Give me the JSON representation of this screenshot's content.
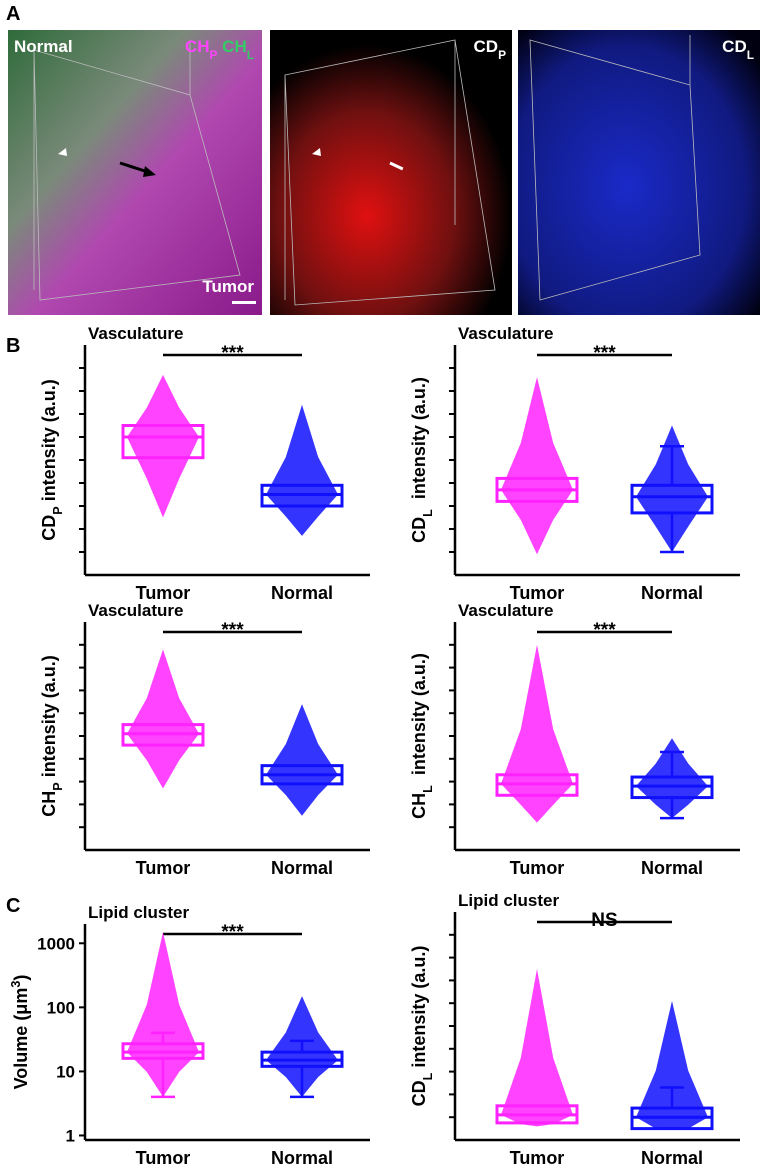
{
  "panel_letters": [
    "A",
    "B",
    "C"
  ],
  "images": [
    {
      "top_left": "Normal",
      "bottom_right": "Tumor",
      "top_right": [
        {
          "text": "CH",
          "color": "#ff44ff"
        },
        {
          "sub": "P",
          "color": "#ff44ff"
        },
        {
          "text": " CH",
          "color": "#33cc66"
        },
        {
          "sub": "L",
          "color": "#33cc66"
        }
      ]
    },
    {
      "top_right": [
        {
          "text": "CD"
        },
        {
          "sub": "P"
        }
      ]
    },
    {
      "top_right": [
        {
          "text": "CD"
        },
        {
          "sub": "L"
        }
      ]
    }
  ],
  "chart_data": [
    {
      "type": "box",
      "title": "Vasculature",
      "y_label": [
        {
          "text": "CD"
        },
        {
          "sub": "P"
        },
        {
          "text": " intensity (a.u.)"
        }
      ],
      "categories": [
        "Tumor",
        "Normal"
      ],
      "colors": [
        "#ff22ff",
        "#1010ff"
      ],
      "significance": "***",
      "ylim": [
        0,
        10
      ],
      "yticks": [
        1,
        2,
        3,
        4,
        5,
        6,
        7,
        8,
        9
      ],
      "show_ytick_labels": false,
      "log_y": false,
      "boxes": [
        {
          "q1": 5.1,
          "median": 6.0,
          "q3": 6.5,
          "extent": [
            2.5,
            8.7
          ]
        },
        {
          "q1": 3.0,
          "median": 3.5,
          "q3": 3.9,
          "extent": [
            1.7,
            7.4
          ]
        }
      ]
    },
    {
      "type": "box",
      "title": "Vasculature",
      "y_label": [
        {
          "text": "CD"
        },
        {
          "sub": "L"
        },
        {
          "text": "  intensity (a.u.)"
        }
      ],
      "categories": [
        "Tumor",
        "Normal"
      ],
      "colors": [
        "#ff22ff",
        "#1010ff"
      ],
      "significance": "***",
      "ylim": [
        0,
        10
      ],
      "yticks": [
        1,
        2,
        3,
        4,
        5,
        6,
        7,
        8,
        9
      ],
      "show_ytick_labels": false,
      "log_y": false,
      "boxes": [
        {
          "q1": 3.2,
          "median": 3.7,
          "q3": 4.2,
          "extent": [
            0.9,
            8.6
          ]
        },
        {
          "q1": 2.7,
          "median": 3.4,
          "q3": 3.9,
          "whisker": [
            1.0,
            5.6
          ],
          "extent": [
            1.0,
            6.5
          ]
        }
      ]
    },
    {
      "type": "box",
      "title": "Vasculature",
      "y_label": [
        {
          "text": "CH"
        },
        {
          "sub": "P"
        },
        {
          "text": " intensity (a.u.)"
        }
      ],
      "categories": [
        "Tumor",
        "Normal"
      ],
      "colors": [
        "#ff22ff",
        "#1010ff"
      ],
      "significance": "***",
      "ylim": [
        0,
        10
      ],
      "yticks": [
        1,
        2,
        3,
        4,
        5,
        6,
        7,
        8,
        9
      ],
      "show_ytick_labels": false,
      "log_y": false,
      "boxes": [
        {
          "q1": 4.6,
          "median": 5.1,
          "q3": 5.5,
          "extent": [
            2.7,
            8.8
          ]
        },
        {
          "q1": 2.9,
          "median": 3.3,
          "q3": 3.7,
          "extent": [
            1.5,
            6.4
          ]
        }
      ]
    },
    {
      "type": "box",
      "title": "Vasculature",
      "y_label": [
        {
          "text": "CH"
        },
        {
          "sub": "L"
        },
        {
          "text": "  intensity (a.u.)"
        }
      ],
      "categories": [
        "Tumor",
        "Normal"
      ],
      "colors": [
        "#ff22ff",
        "#1010ff"
      ],
      "significance": "***",
      "ylim": [
        0,
        10
      ],
      "yticks": [
        1,
        2,
        3,
        4,
        5,
        6,
        7,
        8,
        9
      ],
      "show_ytick_labels": false,
      "log_y": false,
      "boxes": [
        {
          "q1": 2.4,
          "median": 2.9,
          "q3": 3.3,
          "extent": [
            1.2,
            9.0
          ]
        },
        {
          "q1": 2.3,
          "median": 2.8,
          "q3": 3.2,
          "whisker": [
            1.4,
            4.3
          ],
          "extent": [
            1.4,
            4.9
          ]
        }
      ]
    },
    {
      "type": "box",
      "title": "Lipid cluster",
      "y_label": [
        {
          "text": "Volume (μm"
        },
        {
          "sup": "3"
        },
        {
          "text": ")"
        }
      ],
      "categories": [
        "Tumor",
        "Normal"
      ],
      "colors": [
        "#ff22ff",
        "#1010ff"
      ],
      "significance": "***",
      "ylim": [
        0.85,
        2000
      ],
      "yticks": [
        1,
        10,
        100,
        1000
      ],
      "show_ytick_labels": true,
      "log_y": true,
      "boxes": [
        {
          "q1": 16,
          "median": 20,
          "q3": 27,
          "whisker": [
            4,
            40
          ],
          "extent": [
            4,
            1500
          ]
        },
        {
          "q1": 12,
          "median": 15,
          "q3": 20,
          "whisker": [
            4,
            30
          ],
          "extent": [
            4,
            150
          ]
        }
      ]
    },
    {
      "type": "box",
      "title": "Lipid cluster",
      "y_label": [
        {
          "text": "CD"
        },
        {
          "sub": "L"
        },
        {
          "text": " intensity (a.u.)"
        }
      ],
      "categories": [
        "Tumor",
        "Normal"
      ],
      "colors": [
        "#ff22ff",
        "#1010ff"
      ],
      "significance": "NS",
      "ylim": [
        0,
        10
      ],
      "yticks": [
        1,
        2,
        3,
        4,
        5,
        6,
        7,
        8,
        9
      ],
      "show_ytick_labels": false,
      "log_y": false,
      "boxes": [
        {
          "q1": 0.75,
          "median": 1.1,
          "q3": 1.5,
          "extent": [
            0.6,
            7.5
          ]
        },
        {
          "q1": 0.5,
          "median": 1.0,
          "q3": 1.4,
          "whisker": [
            0.5,
            2.3
          ],
          "extent": [
            0.5,
            6.1
          ]
        }
      ]
    }
  ]
}
